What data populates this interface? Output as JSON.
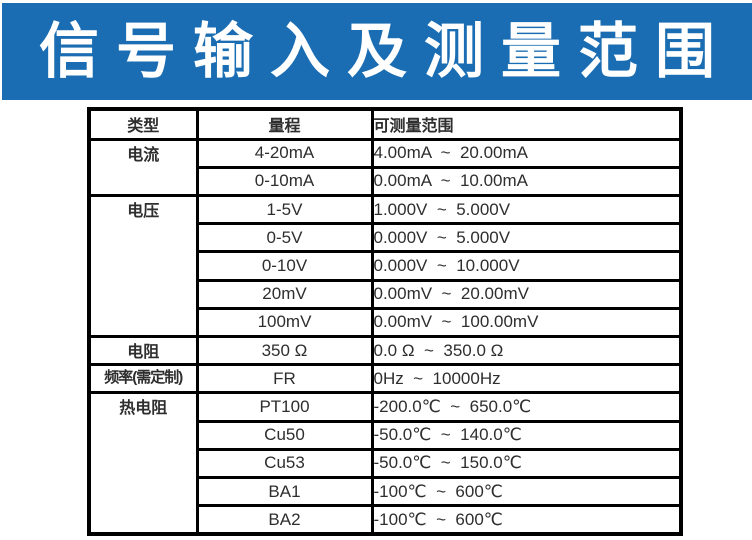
{
  "banner": {
    "title": "信号输入及测量范围",
    "bg_color": "#1A6DB2",
    "text_color": "#FFFFFF"
  },
  "table": {
    "headers": {
      "type": "类型",
      "range": "量程",
      "measurable": "可测量范围"
    },
    "groups": [
      {
        "type": "电流",
        "rows": [
          {
            "range": "4-20mA",
            "measurable": "4.00mA  ~  20.00mA"
          },
          {
            "range": "0-10mA",
            "measurable": "0.00mA  ~  10.00mA"
          }
        ]
      },
      {
        "type": "电压",
        "rows": [
          {
            "range": "1-5V",
            "measurable": "1.000V  ~  5.000V"
          },
          {
            "range": "0-5V",
            "measurable": "0.000V  ~  5.000V"
          },
          {
            "range": "0-10V",
            "measurable": "0.000V  ~  10.000V"
          },
          {
            "range": "20mV",
            "measurable": "0.00mV  ~  20.00mV"
          },
          {
            "range": "100mV",
            "measurable": "0.00mV  ~  100.00mV"
          }
        ]
      },
      {
        "type": "电阻",
        "rows": [
          {
            "range": "350 Ω",
            "measurable": "0.0 Ω  ~  350.0 Ω"
          }
        ]
      },
      {
        "type": "频率(需定制)",
        "rows": [
          {
            "range": "FR",
            "measurable": "0Hz  ~  10000Hz"
          }
        ]
      },
      {
        "type": "热电阻",
        "rows": [
          {
            "range": "PT100",
            "measurable": "-200.0℃  ~  650.0℃"
          },
          {
            "range": "Cu50",
            "measurable": "-50.0℃  ~  140.0℃"
          },
          {
            "range": "Cu53",
            "measurable": "-50.0℃  ~  150.0℃"
          },
          {
            "range": "BA1",
            "measurable": "-100℃  ~  600℃"
          },
          {
            "range": "BA2",
            "measurable": "-100℃  ~  600℃"
          }
        ]
      }
    ]
  }
}
